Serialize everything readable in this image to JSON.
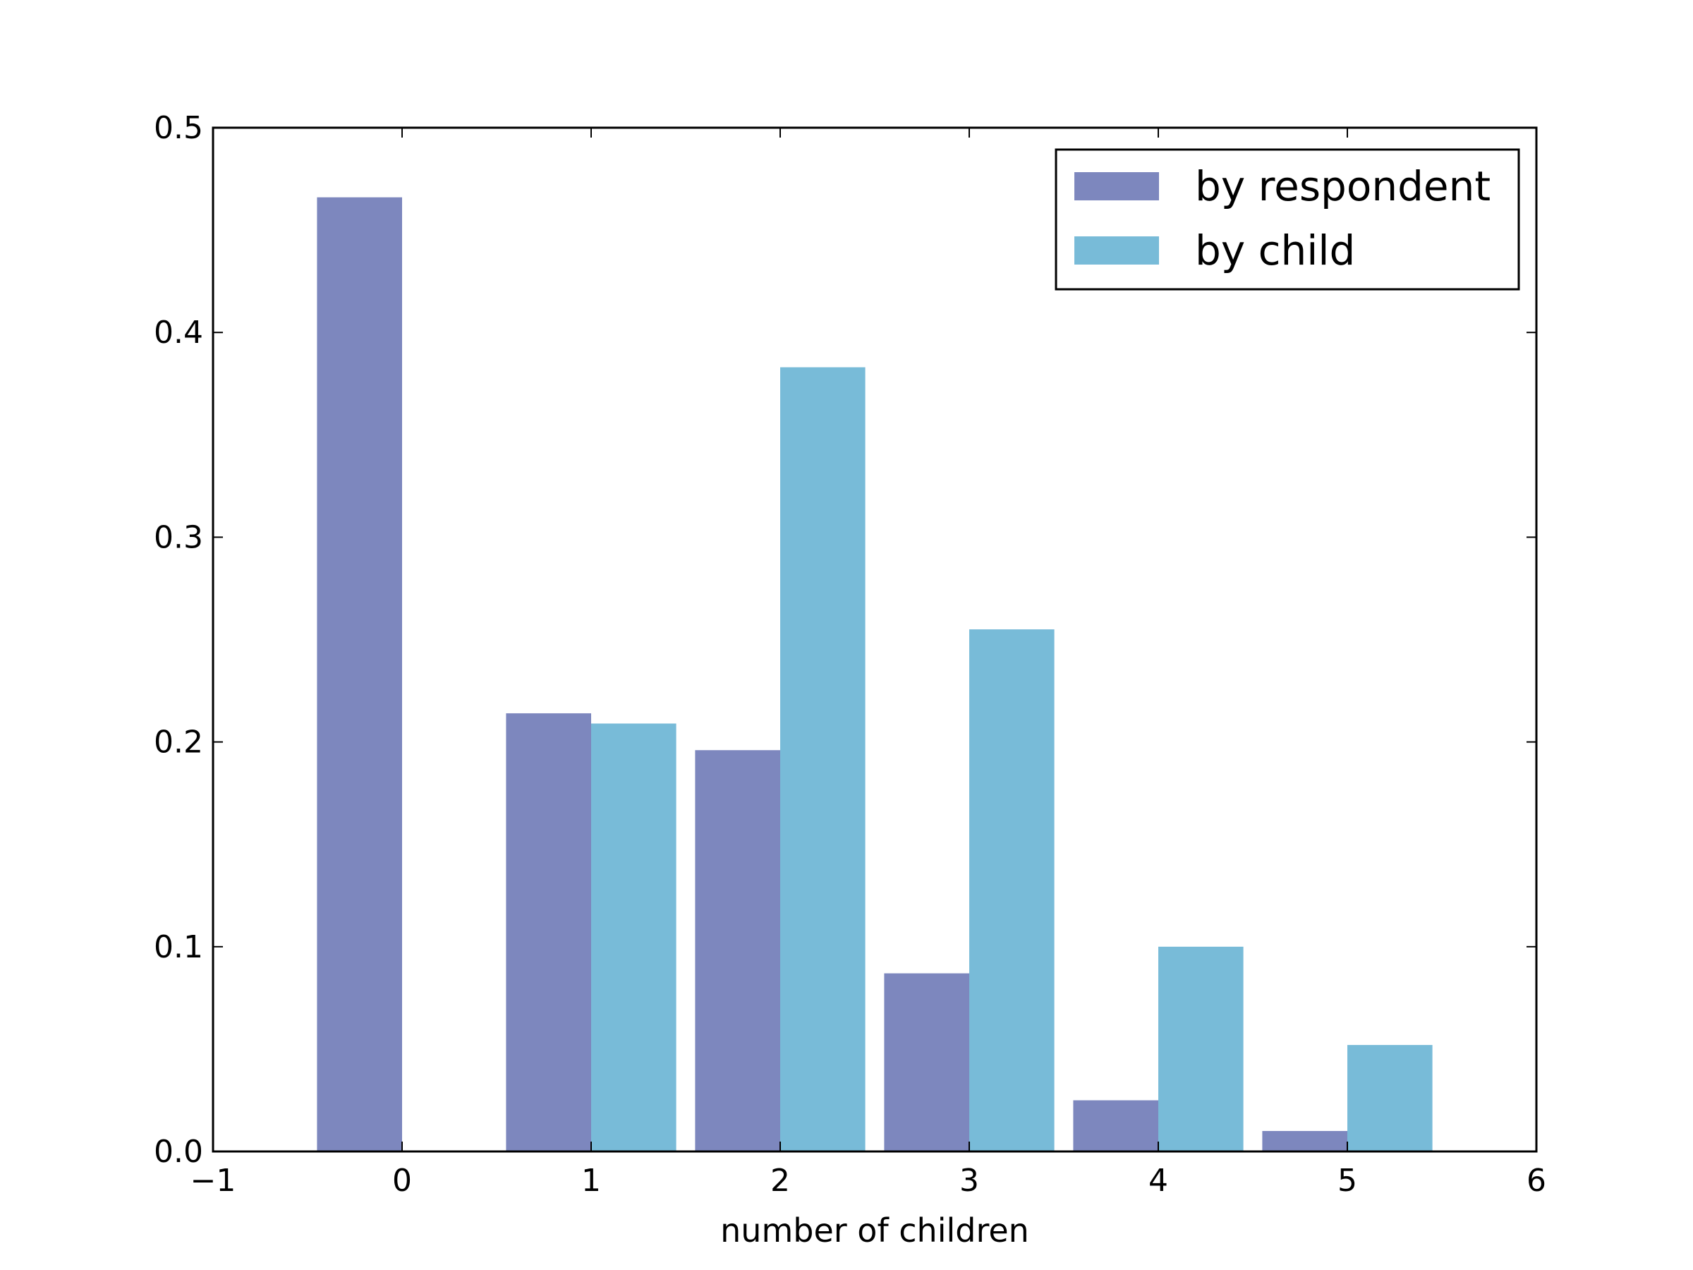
{
  "chart_data": {
    "type": "bar",
    "xlabel": "number of children",
    "ylabel": "",
    "xlim": [
      -1,
      6
    ],
    "ylim": [
      0,
      0.5
    ],
    "xticks": [
      -1,
      0,
      1,
      2,
      3,
      4,
      5,
      6
    ],
    "xtick_labels": [
      "−1",
      "0",
      "1",
      "2",
      "3",
      "4",
      "5",
      "6"
    ],
    "yticks": [
      0,
      0.1,
      0.2,
      0.3,
      0.4,
      0.5
    ],
    "ytick_labels": [
      "0.0",
      "0.1",
      "0.2",
      "0.3",
      "0.4",
      "0.5"
    ],
    "legend_position": "top-right",
    "bar_width": 0.45,
    "series": [
      {
        "name": "by respondent",
        "color": "#7d87be",
        "x": [
          0,
          1,
          2,
          3,
          4,
          5
        ],
        "values": [
          0.466,
          0.214,
          0.196,
          0.087,
          0.025,
          0.01
        ],
        "align": "left"
      },
      {
        "name": "by child",
        "color": "#78bbd8",
        "x": [
          0,
          1,
          2,
          3,
          4,
          5
        ],
        "values": [
          0.0,
          0.209,
          0.383,
          0.255,
          0.1,
          0.052
        ],
        "align": "right"
      }
    ]
  }
}
